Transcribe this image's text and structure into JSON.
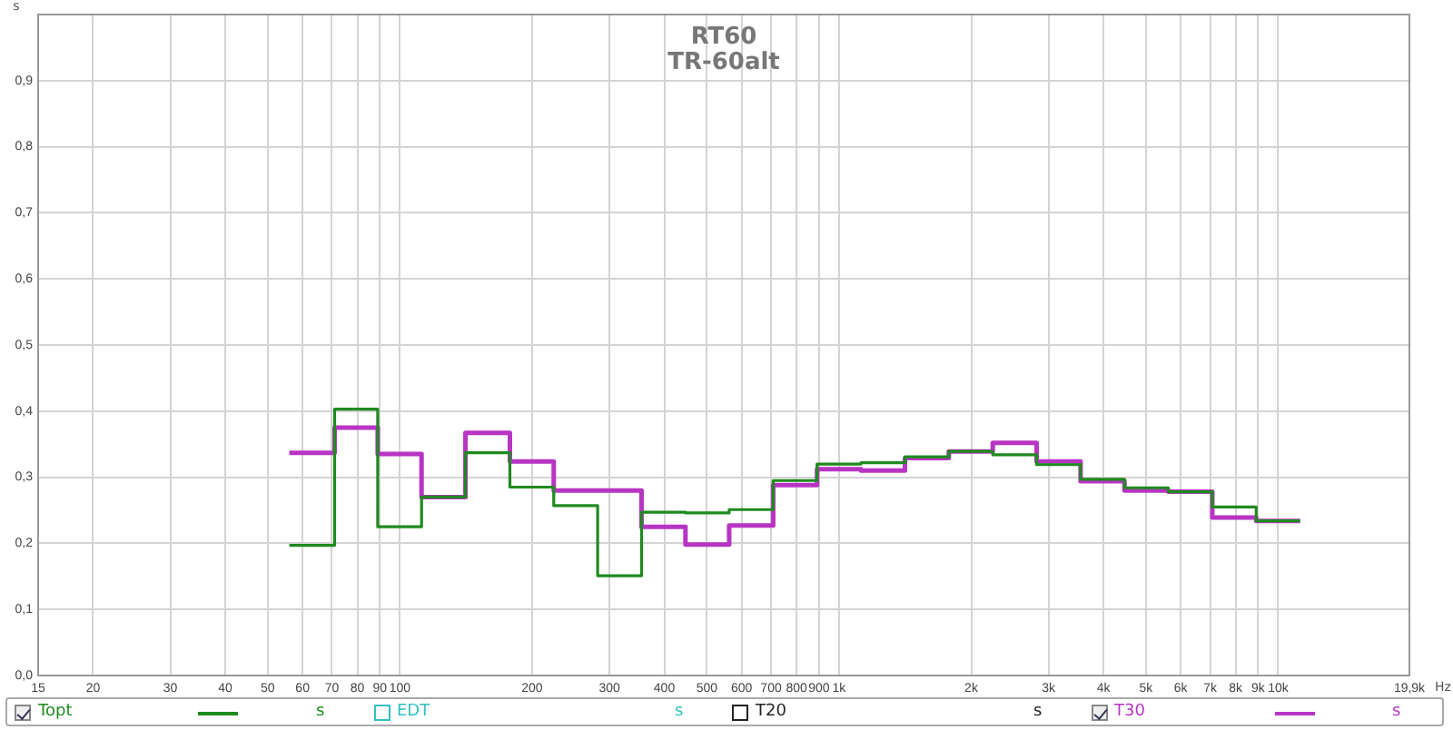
{
  "chart_data": {
    "type": "step",
    "title": "RT60",
    "subtitle": "TR-60alt",
    "xlabel": "Hz",
    "ylabel": "s",
    "log": "x",
    "x": [
      56,
      71,
      89,
      112,
      141,
      178,
      224,
      282,
      355,
      447,
      562,
      708,
      891,
      1122,
      1413,
      1778,
      2239,
      2818,
      3548,
      4467,
      5623,
      7079,
      8913,
      11220
    ],
    "series": [
      {
        "name": "Topt",
        "color": "#1f8a1f",
        "values": [
          0.197,
          0.403,
          0.225,
          0.27,
          0.337,
          0.285,
          0.257,
          0.151,
          0.247,
          0.246,
          0.251,
          0.295,
          0.32,
          0.322,
          0.331,
          0.339,
          0.334,
          0.319,
          0.297,
          0.284,
          0.278,
          0.255,
          0.234,
          0.234
        ]
      },
      {
        "name": "EDT",
        "color": "#33c0c0",
        "values": [
          null,
          null,
          null,
          null,
          null,
          null,
          null,
          null,
          null,
          null,
          null,
          null,
          null,
          null,
          null,
          null,
          null,
          null,
          null,
          null,
          null,
          null,
          null,
          null
        ]
      },
      {
        "name": "T20",
        "color": "#222222",
        "values": [
          null,
          null,
          null,
          null,
          null,
          null,
          null,
          null,
          null,
          null,
          null,
          null,
          null,
          null,
          null,
          null,
          null,
          null,
          null,
          null,
          null,
          null,
          null,
          null
        ]
      },
      {
        "name": "T30",
        "color": "#b834c4",
        "values": [
          0.337,
          0.375,
          0.335,
          0.27,
          0.367,
          0.324,
          0.28,
          0.28,
          0.225,
          0.198,
          0.227,
          0.288,
          0.312,
          0.31,
          0.329,
          0.339,
          0.352,
          0.324,
          0.294,
          0.28,
          0.278,
          0.239,
          0.234,
          0.234
        ]
      }
    ],
    "xlim": [
      15,
      19900
    ],
    "xticks": [
      15,
      20,
      30,
      40,
      50,
      60,
      70,
      80,
      90,
      100,
      200,
      300,
      400,
      500,
      600,
      700,
      800,
      900,
      {
        "value": 1000,
        "label": "1k"
      },
      {
        "value": 2000,
        "label": "2k"
      },
      {
        "value": 3000,
        "label": "3k"
      },
      {
        "value": 4000,
        "label": "4k"
      },
      {
        "value": 5000,
        "label": "5k"
      },
      {
        "value": 6000,
        "label": "6k"
      },
      {
        "value": 7000,
        "label": "7k"
      },
      {
        "value": 8000,
        "label": "8k"
      },
      {
        "value": 9000,
        "label": "9k"
      },
      {
        "value": 10000,
        "label": "10k"
      },
      {
        "value": 19900,
        "label": "19,9k"
      }
    ],
    "ylim": [
      0,
      1
    ],
    "yticks": [
      {
        "value": 0,
        "label": "0,0"
      },
      {
        "value": 0.1,
        "label": "0,1"
      },
      {
        "value": 0.2,
        "label": "0,2"
      },
      {
        "value": 0.3,
        "label": "0,3"
      },
      {
        "value": 0.4,
        "label": "0,4"
      },
      {
        "value": 0.5,
        "label": "0,5"
      },
      {
        "value": 0.6,
        "label": "0,6"
      },
      {
        "value": 0.7,
        "label": "0,7"
      },
      {
        "value": 0.8,
        "label": "0,8"
      },
      {
        "value": 0.9,
        "label": "0,9"
      }
    ],
    "grid": true,
    "legend": "bottom",
    "marker": "none",
    "line_style": "solid"
  }
}
